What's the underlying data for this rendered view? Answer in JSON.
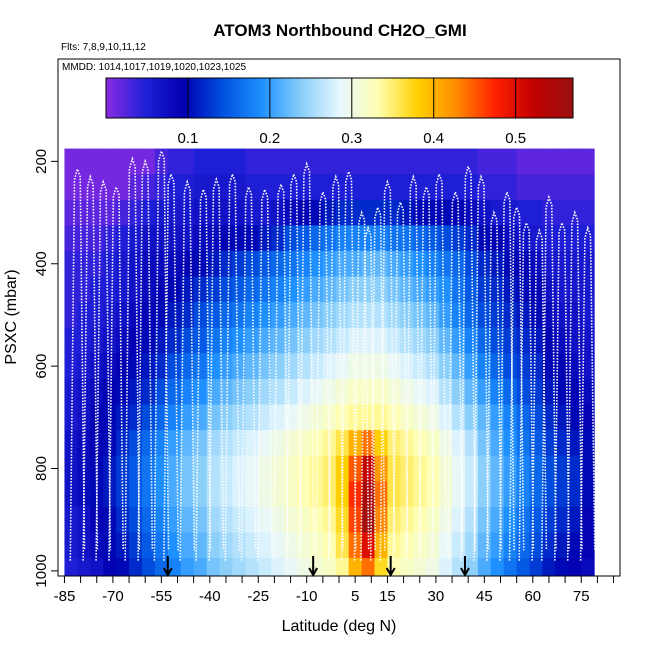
{
  "chart_data": {
    "type": "heatmap",
    "title": "ATOM3 Northbound CH2O_GMI",
    "flights_label": "Flts: 7,8,9,10,11,12",
    "dates_label": "MMDD: 1014,1017,1019,1020,1023,1025",
    "xlabel": "Latitude (deg N)",
    "ylabel": "PSXC (mbar)",
    "xlim": [
      -87,
      87
    ],
    "ylim": [
      1010,
      0
    ],
    "xticks": [
      -85,
      -70,
      -55,
      -40,
      -25,
      -10,
      5,
      15,
      30,
      45,
      60,
      75
    ],
    "xtick_labels": [
      "-85",
      "-70",
      "-55",
      "-40",
      "-25",
      "-10",
      "5",
      "15",
      "30",
      "45",
      "60",
      "75"
    ],
    "yticks": [
      200,
      400,
      600,
      800,
      1000
    ],
    "ytick_labels": [
      "200",
      "400",
      "600",
      "800",
      "1000"
    ],
    "colorbar": {
      "range": [
        0.0,
        0.57
      ],
      "ticks": [
        0.1,
        0.2,
        0.3,
        0.4,
        0.5
      ],
      "tick_labels": [
        "0.1",
        "0.2",
        "0.3",
        "0.4",
        "0.5"
      ],
      "colors": [
        "#8a2be2",
        "#2020d8",
        "#0000b0",
        "#0050e0",
        "#1e90ff",
        "#87cefa",
        "#e6f7ff",
        "#ffffb0",
        "#ffd000",
        "#ff8c00",
        "#ff2000",
        "#c00000",
        "#9a1010"
      ]
    },
    "latitude_bins": [
      -83,
      -79,
      -75,
      -71,
      -67,
      -63,
      -59,
      -55,
      -51,
      -47,
      -43,
      -39,
      -35,
      -31,
      -27,
      -23,
      -19,
      -15,
      -11,
      -7,
      -3,
      1,
      5,
      9,
      13,
      17,
      21,
      25,
      29,
      33,
      37,
      41,
      45,
      49,
      53,
      57,
      61,
      65,
      69,
      73,
      77
    ],
    "pressure_bins": [
      200,
      250,
      300,
      350,
      400,
      450,
      500,
      550,
      600,
      650,
      700,
      750,
      800,
      850,
      900,
      950,
      1000
    ],
    "ch2o_grid": [
      [
        0.01,
        0.01,
        0.01,
        0.01,
        0.01,
        0.01,
        0.01,
        0.03,
        0.04,
        0.04,
        0.05,
        0.05,
        0.05,
        0.05,
        0.04,
        0.04,
        0.04,
        0.04,
        0.04,
        0.04,
        0.04,
        0.04,
        0.04,
        0.04,
        0.04,
        0.04,
        0.04,
        0.04,
        0.04,
        0.04,
        0.04,
        0.04,
        0.03,
        0.03,
        0.03,
        0.02,
        0.02,
        0.02,
        0.02,
        0.02,
        0.02
      ],
      [
        0.01,
        0.01,
        0.01,
        0.01,
        0.01,
        0.02,
        0.03,
        0.04,
        0.05,
        0.05,
        0.06,
        0.06,
        0.06,
        0.06,
        0.05,
        0.05,
        0.05,
        0.05,
        0.05,
        0.05,
        0.05,
        0.05,
        0.05,
        0.05,
        0.05,
        0.05,
        0.05,
        0.05,
        0.05,
        0.05,
        0.05,
        0.05,
        0.04,
        0.04,
        0.04,
        0.03,
        0.03,
        0.03,
        0.03,
        0.03,
        0.03
      ],
      [
        0.02,
        0.02,
        0.02,
        0.02,
        0.03,
        0.04,
        0.05,
        0.06,
        0.06,
        0.06,
        0.07,
        0.07,
        0.07,
        0.07,
        0.06,
        0.06,
        0.07,
        0.08,
        0.09,
        0.1,
        0.11,
        0.12,
        0.12,
        0.12,
        0.12,
        0.12,
        0.11,
        0.1,
        0.1,
        0.1,
        0.09,
        0.08,
        0.07,
        0.06,
        0.06,
        0.05,
        0.05,
        0.04,
        0.04,
        0.04,
        0.04
      ],
      [
        0.03,
        0.03,
        0.03,
        0.04,
        0.05,
        0.06,
        0.07,
        0.07,
        0.07,
        0.07,
        0.08,
        0.08,
        0.09,
        0.1,
        0.1,
        0.11,
        0.12,
        0.14,
        0.15,
        0.16,
        0.17,
        0.18,
        0.18,
        0.18,
        0.18,
        0.17,
        0.17,
        0.16,
        0.15,
        0.14,
        0.13,
        0.12,
        0.1,
        0.09,
        0.08,
        0.07,
        0.06,
        0.05,
        0.05,
        0.05,
        0.05
      ],
      [
        0.04,
        0.04,
        0.04,
        0.05,
        0.06,
        0.07,
        0.08,
        0.08,
        0.08,
        0.09,
        0.1,
        0.11,
        0.12,
        0.13,
        0.14,
        0.15,
        0.16,
        0.17,
        0.18,
        0.19,
        0.2,
        0.21,
        0.21,
        0.22,
        0.22,
        0.21,
        0.2,
        0.19,
        0.18,
        0.17,
        0.16,
        0.14,
        0.12,
        0.11,
        0.1,
        0.09,
        0.08,
        0.06,
        0.06,
        0.06,
        0.06
      ],
      [
        0.04,
        0.04,
        0.05,
        0.05,
        0.06,
        0.07,
        0.08,
        0.09,
        0.1,
        0.11,
        0.12,
        0.13,
        0.14,
        0.15,
        0.16,
        0.17,
        0.18,
        0.19,
        0.2,
        0.21,
        0.22,
        0.23,
        0.24,
        0.24,
        0.24,
        0.23,
        0.22,
        0.21,
        0.2,
        0.19,
        0.17,
        0.15,
        0.13,
        0.12,
        0.11,
        0.1,
        0.09,
        0.07,
        0.06,
        0.06,
        0.06
      ],
      [
        0.04,
        0.05,
        0.05,
        0.06,
        0.07,
        0.08,
        0.09,
        0.1,
        0.11,
        0.12,
        0.14,
        0.15,
        0.16,
        0.17,
        0.18,
        0.19,
        0.2,
        0.21,
        0.22,
        0.23,
        0.24,
        0.25,
        0.26,
        0.26,
        0.26,
        0.25,
        0.24,
        0.23,
        0.22,
        0.2,
        0.18,
        0.16,
        0.14,
        0.13,
        0.12,
        0.11,
        0.1,
        0.08,
        0.07,
        0.07,
        0.06
      ],
      [
        0.05,
        0.05,
        0.06,
        0.07,
        0.08,
        0.09,
        0.1,
        0.11,
        0.12,
        0.14,
        0.15,
        0.17,
        0.18,
        0.19,
        0.2,
        0.21,
        0.22,
        0.23,
        0.24,
        0.25,
        0.26,
        0.27,
        0.28,
        0.28,
        0.28,
        0.27,
        0.26,
        0.25,
        0.24,
        0.22,
        0.2,
        0.18,
        0.16,
        0.14,
        0.13,
        0.12,
        0.11,
        0.09,
        0.08,
        0.07,
        0.07
      ],
      [
        0.05,
        0.06,
        0.07,
        0.08,
        0.09,
        0.1,
        0.11,
        0.12,
        0.14,
        0.16,
        0.17,
        0.19,
        0.2,
        0.21,
        0.22,
        0.23,
        0.24,
        0.25,
        0.26,
        0.27,
        0.28,
        0.29,
        0.3,
        0.3,
        0.3,
        0.29,
        0.28,
        0.27,
        0.26,
        0.24,
        0.22,
        0.2,
        0.18,
        0.16,
        0.14,
        0.13,
        0.12,
        0.1,
        0.09,
        0.08,
        0.07
      ],
      [
        0.06,
        0.07,
        0.08,
        0.09,
        0.1,
        0.11,
        0.12,
        0.14,
        0.16,
        0.18,
        0.19,
        0.21,
        0.22,
        0.23,
        0.24,
        0.25,
        0.26,
        0.27,
        0.28,
        0.29,
        0.3,
        0.31,
        0.32,
        0.32,
        0.32,
        0.31,
        0.3,
        0.29,
        0.28,
        0.26,
        0.24,
        0.22,
        0.2,
        0.18,
        0.16,
        0.14,
        0.13,
        0.11,
        0.1,
        0.09,
        0.08
      ],
      [
        0.06,
        0.07,
        0.09,
        0.1,
        0.11,
        0.12,
        0.14,
        0.16,
        0.18,
        0.2,
        0.21,
        0.23,
        0.24,
        0.25,
        0.26,
        0.27,
        0.28,
        0.29,
        0.3,
        0.31,
        0.32,
        0.33,
        0.34,
        0.34,
        0.34,
        0.33,
        0.32,
        0.31,
        0.3,
        0.28,
        0.26,
        0.24,
        0.22,
        0.2,
        0.18,
        0.16,
        0.14,
        0.12,
        0.11,
        0.1,
        0.09
      ],
      [
        0.07,
        0.08,
        0.09,
        0.1,
        0.12,
        0.14,
        0.16,
        0.18,
        0.2,
        0.22,
        0.23,
        0.25,
        0.26,
        0.27,
        0.28,
        0.29,
        0.3,
        0.31,
        0.32,
        0.33,
        0.34,
        0.36,
        0.4,
        0.44,
        0.38,
        0.35,
        0.34,
        0.33,
        0.32,
        0.3,
        0.28,
        0.26,
        0.23,
        0.21,
        0.19,
        0.17,
        0.15,
        0.13,
        0.12,
        0.11,
        0.1
      ],
      [
        0.07,
        0.08,
        0.1,
        0.11,
        0.13,
        0.15,
        0.17,
        0.19,
        0.21,
        0.23,
        0.24,
        0.26,
        0.27,
        0.28,
        0.29,
        0.3,
        0.31,
        0.32,
        0.33,
        0.34,
        0.35,
        0.38,
        0.45,
        0.52,
        0.42,
        0.36,
        0.35,
        0.34,
        0.33,
        0.31,
        0.29,
        0.27,
        0.24,
        0.22,
        0.2,
        0.18,
        0.16,
        0.14,
        0.13,
        0.12,
        0.1
      ],
      [
        0.07,
        0.08,
        0.1,
        0.11,
        0.13,
        0.15,
        0.17,
        0.19,
        0.21,
        0.23,
        0.24,
        0.26,
        0.27,
        0.28,
        0.29,
        0.3,
        0.31,
        0.32,
        0.33,
        0.34,
        0.35,
        0.38,
        0.47,
        0.55,
        0.44,
        0.36,
        0.35,
        0.34,
        0.33,
        0.31,
        0.29,
        0.27,
        0.24,
        0.22,
        0.2,
        0.18,
        0.16,
        0.14,
        0.13,
        0.12,
        0.1
      ],
      [
        0.06,
        0.07,
        0.09,
        0.1,
        0.12,
        0.14,
        0.16,
        0.18,
        0.2,
        0.22,
        0.23,
        0.25,
        0.26,
        0.27,
        0.28,
        0.29,
        0.3,
        0.31,
        0.32,
        0.33,
        0.34,
        0.37,
        0.46,
        0.56,
        0.43,
        0.35,
        0.34,
        0.33,
        0.32,
        0.3,
        0.28,
        0.26,
        0.23,
        0.21,
        0.19,
        0.17,
        0.15,
        0.13,
        0.12,
        0.11,
        0.09
      ],
      [
        0.06,
        0.07,
        0.08,
        0.1,
        0.11,
        0.13,
        0.15,
        0.17,
        0.19,
        0.21,
        0.22,
        0.24,
        0.25,
        0.26,
        0.27,
        0.28,
        0.29,
        0.3,
        0.31,
        0.32,
        0.33,
        0.36,
        0.44,
        0.5,
        0.4,
        0.34,
        0.33,
        0.32,
        0.31,
        0.29,
        0.27,
        0.25,
        0.22,
        0.2,
        0.18,
        0.16,
        0.14,
        0.12,
        0.11,
        0.1,
        0.09
      ],
      [
        0.05,
        0.06,
        0.07,
        0.09,
        0.1,
        0.12,
        0.14,
        0.16,
        0.18,
        0.2,
        0.21,
        0.23,
        0.24,
        0.25,
        0.26,
        0.27,
        0.28,
        0.29,
        0.3,
        0.31,
        0.32,
        0.34,
        0.4,
        0.44,
        0.37,
        0.33,
        0.32,
        0.31,
        0.3,
        0.28,
        0.26,
        0.24,
        0.21,
        0.19,
        0.17,
        0.15,
        0.13,
        0.11,
        0.1,
        0.09,
        0.08
      ]
    ],
    "profile_latitudes": [
      -81,
      -77,
      -73,
      -69,
      -64,
      -60,
      -55,
      -52,
      -47,
      -42,
      -38,
      -33,
      -28,
      -23,
      -18,
      -14,
      -10,
      -5,
      -1,
      3,
      7,
      9,
      12,
      15,
      19,
      23,
      27,
      31,
      36,
      40,
      44,
      48,
      52,
      55,
      58,
      62,
      65,
      69,
      73,
      77
    ],
    "profile_tops": [
      215,
      230,
      240,
      250,
      195,
      200,
      180,
      225,
      240,
      255,
      235,
      225,
      250,
      255,
      245,
      225,
      205,
      260,
      230,
      220,
      300,
      330,
      290,
      240,
      280,
      230,
      250,
      225,
      260,
      210,
      230,
      300,
      260,
      290,
      320,
      335,
      270,
      320,
      300,
      330
    ],
    "arrows_lat": [
      -53,
      -8,
      16,
      39
    ]
  }
}
